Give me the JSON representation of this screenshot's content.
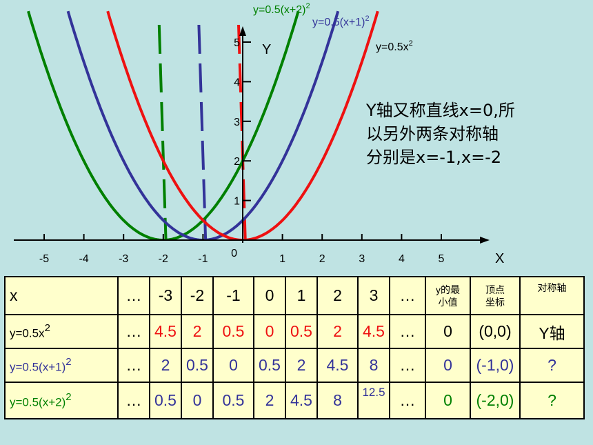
{
  "chart_data": {
    "type": "line",
    "xlabel": "X",
    "ylabel": "Y",
    "origin_label": "0",
    "x_ticks": [
      "-5",
      "-4",
      "-3",
      "-2",
      "-1",
      "1",
      "2",
      "3",
      "4",
      "5"
    ],
    "y_ticks": [
      "1",
      "2",
      "3",
      "4",
      "5"
    ],
    "xlim": [
      -5.7,
      6.0
    ],
    "ylim": [
      0,
      5.6
    ],
    "series": [
      {
        "name": "y=0.5(x+2)2",
        "color": "#008000",
        "shift": 2,
        "axis_x": -2,
        "label": "y=0.5(x+2)",
        "sup": "2"
      },
      {
        "name": "y=0.5(x+1)2",
        "color": "#333399",
        "shift": 1,
        "axis_x": -1,
        "label": "y=0.5(x+1)",
        "sup": "2"
      },
      {
        "name": "y=0.5x2",
        "color": "#ee1111",
        "shift": 0,
        "axis_x": 0,
        "label": "y=0.5x",
        "sup": "2"
      }
    ]
  },
  "note": {
    "lines": [
      "Y轴又称直线x=0,所",
      "以另外两条对称轴",
      "分别是x=-1,x=-2"
    ]
  },
  "table": {
    "header": {
      "label": "x",
      "cells": [
        "…",
        "-3",
        "-2",
        "-1",
        "0",
        "1",
        "2",
        "3",
        "…"
      ],
      "min_label_1": "y的最",
      "min_label_2": "小值",
      "vertex_label_1": "顶点",
      "vertex_label_2": "坐标",
      "axis_label": "对称轴"
    },
    "rows": [
      {
        "label": "y=0.5x",
        "label_sup": "2",
        "color": "#ee1111",
        "cells": [
          "…",
          "4.5",
          "2",
          "0.5",
          "0",
          "0.5",
          "2",
          "4.5",
          "…"
        ],
        "min": "0",
        "vertex": "(0,0)",
        "axis": "Y轴"
      },
      {
        "label": "y=0.5(x+1)",
        "label_sup": "2",
        "color": "#333399",
        "cells": [
          "…",
          "2",
          "0.5",
          "0",
          "0.5",
          "2",
          "4.5",
          "8",
          "…"
        ],
        "min": "0",
        "vertex": "(-1,0)",
        "axis": "?"
      },
      {
        "label": "y=0.5(x+2)",
        "label_sup": "2",
        "color": "#008000",
        "cells": [
          "…",
          "0.5",
          "0",
          "0.5",
          "2",
          "4.5",
          "8",
          "12.5",
          "…"
        ],
        "min": "0",
        "vertex": "(-2,0)",
        "axis": "?"
      }
    ]
  }
}
